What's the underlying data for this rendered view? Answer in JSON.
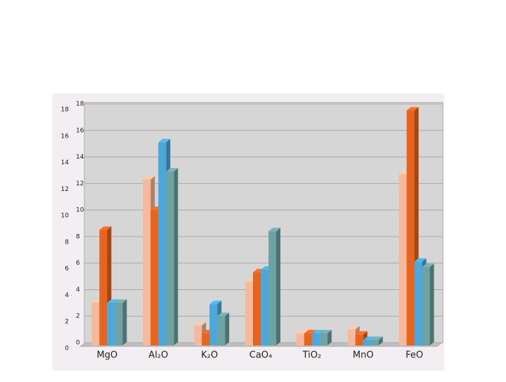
{
  "chart_data": {
    "type": "bar3d",
    "categories": [
      "MgO",
      "Al₂O",
      "K₂O",
      "CaO₄",
      "TiO₂",
      "MnO",
      "FeO"
    ],
    "series": [
      {
        "color": "#f6b99c",
        "values": [
          3,
          12.3,
          1.3,
          4.6,
          0.7,
          1,
          12.7
        ]
      },
      {
        "color": "#e8641e",
        "values": [
          8.5,
          10,
          0.7,
          5.3,
          0.7,
          0.6,
          17.5
        ]
      },
      {
        "color": "#4aa8dc",
        "values": [
          3,
          15.1,
          2.9,
          5.5,
          0.7,
          0.2,
          6.1
        ]
      },
      {
        "color": "#6fa3a3",
        "values": [
          3,
          12.9,
          2,
          8.4,
          0.7,
          0.2,
          5.7
        ]
      }
    ],
    "ylim": [
      0,
      18
    ],
    "yticks": [
      0,
      2,
      4,
      6,
      8,
      10,
      12,
      14,
      16,
      18
    ],
    "grid": true
  }
}
